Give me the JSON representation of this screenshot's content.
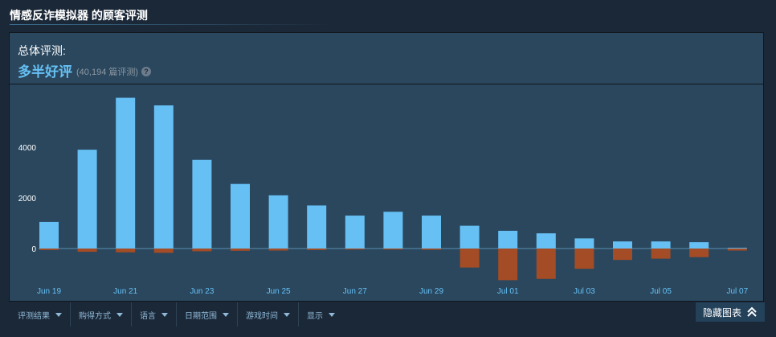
{
  "page": {
    "title": "情感反诈模拟器 的顾客评测"
  },
  "summary": {
    "label": "总体评测:",
    "rating": "多半好评",
    "count": "(40,194 篇评测)",
    "help_glyph": "?"
  },
  "chart_data": {
    "type": "bar",
    "categories": [
      "Jun 19",
      "Jun 20",
      "Jun 21",
      "Jun 22",
      "Jun 23",
      "Jun 24",
      "Jun 25",
      "Jun 26",
      "Jun 27",
      "Jun 28",
      "Jun 29",
      "Jun 30",
      "Jul 01",
      "Jul 02",
      "Jul 03",
      "Jul 04",
      "Jul 05",
      "Jul 06",
      "Jul 07"
    ],
    "tick_labels": [
      "Jun 19",
      "Jun 21",
      "Jun 23",
      "Jun 25",
      "Jun 27",
      "Jun 29",
      "Jul 01",
      "Jul 03",
      "Jul 05",
      "Jul 07"
    ],
    "y_ticks": [
      "4000",
      "2000",
      "0"
    ],
    "series": [
      {
        "values": [
          1050,
          3900,
          5950,
          5650,
          3500,
          2550,
          2100,
          1700,
          1300,
          1450,
          1300,
          900,
          700,
          600,
          400,
          280,
          280,
          250,
          30
        ],
        "color": "#66c0f4"
      },
      {
        "values": [
          -60,
          -130,
          -150,
          -170,
          -110,
          -90,
          -80,
          -60,
          -40,
          -40,
          -50,
          -750,
          -1250,
          -1200,
          -800,
          -450,
          -400,
          -340,
          -80
        ],
        "color": "#a34c25"
      }
    ],
    "ylim": [
      -1300,
      6000
    ],
    "grid": false
  },
  "filters": [
    {
      "label": "评测结果"
    },
    {
      "label": "购得方式"
    },
    {
      "label": "语言"
    },
    {
      "label": "日期范围"
    },
    {
      "label": "游戏时间"
    },
    {
      "label": "显示"
    }
  ],
  "hide_chart": {
    "label": "隐藏图表"
  },
  "colors": {
    "background": "#1b2838",
    "panel": "#2a475e",
    "positive": "#66c0f4",
    "negative": "#a34c25",
    "axis_label": "#66c0f4"
  }
}
